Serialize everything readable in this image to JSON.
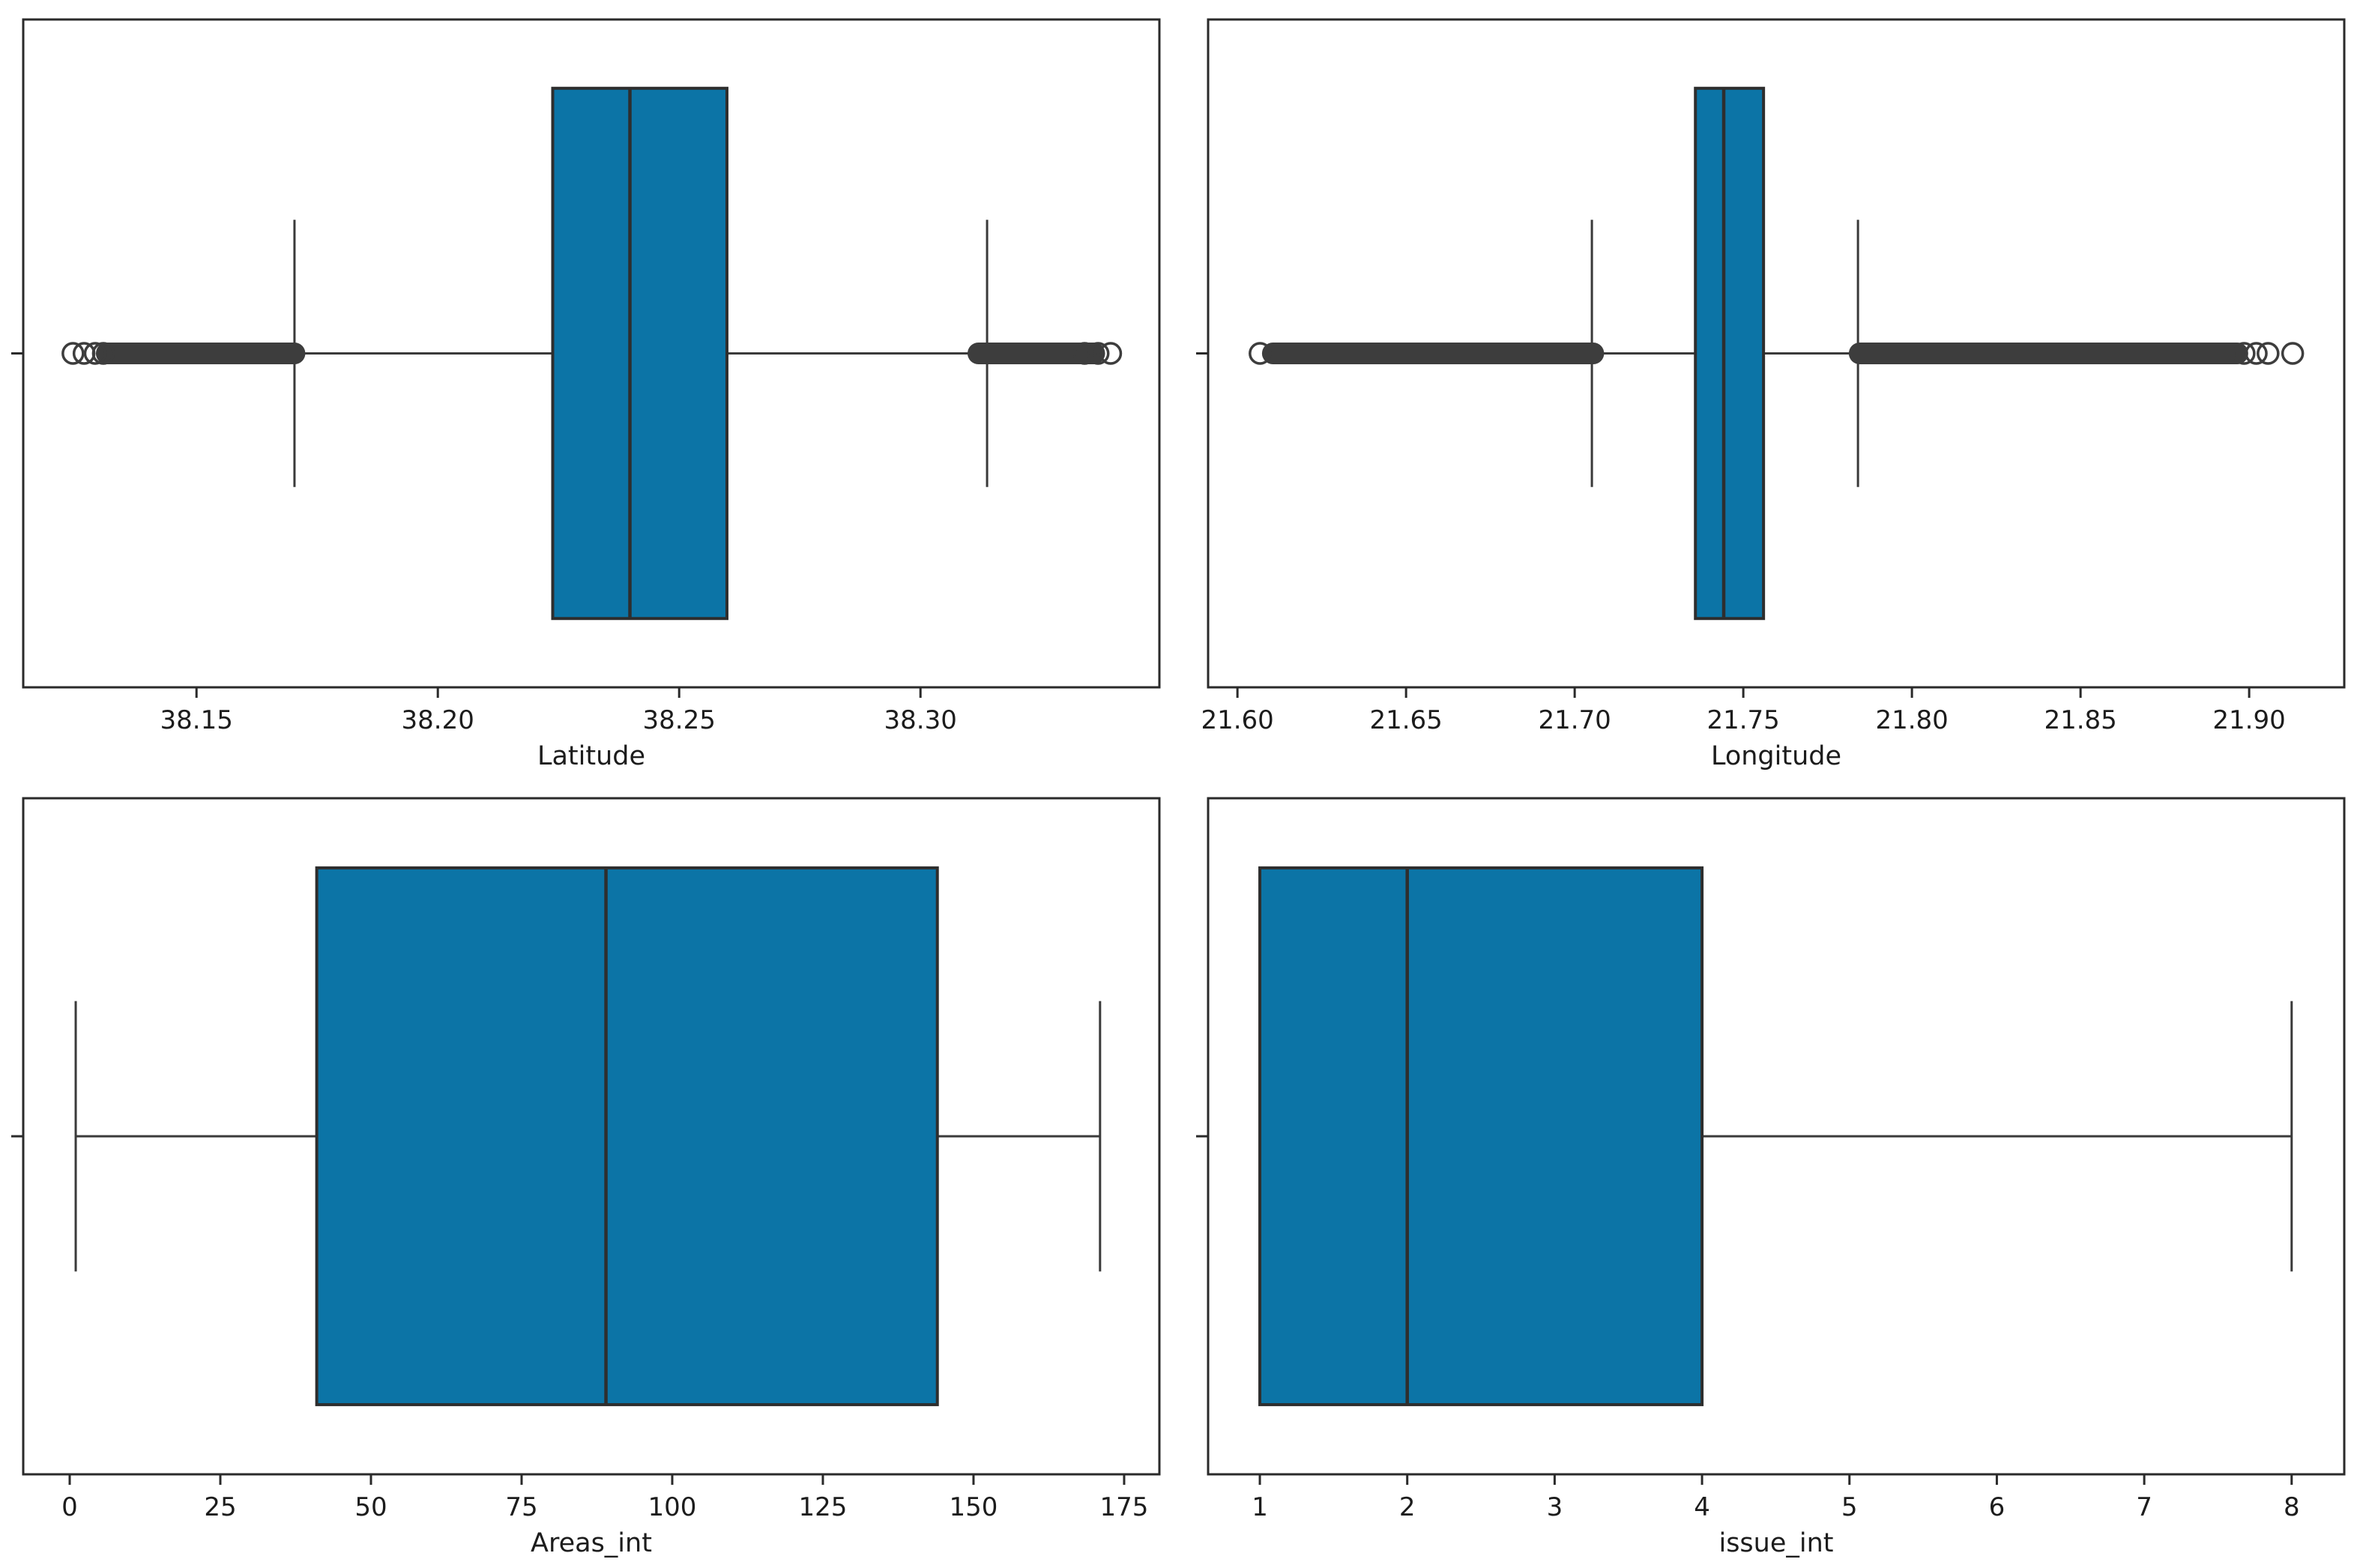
{
  "figure": {
    "background": "#ffffff",
    "rows": 2,
    "cols": 2
  },
  "colors": {
    "box_fill": "#0c74a6",
    "box_edge": "#2e2e2e",
    "whisker": "#3a3a3a",
    "flier": "#3d3d3d",
    "axis": "#2a2a2a",
    "text": "#1c1c1c",
    "background": "#ffffff"
  },
  "chart_data": [
    {
      "type": "boxplot",
      "orientation": "horizontal",
      "xlabel": "Latitude",
      "xlim": [
        38.1141,
        38.3495
      ],
      "grid": false,
      "ticks": {
        "values": [
          38.15,
          38.2,
          38.25,
          38.3
        ],
        "labels": [
          "38.15",
          "38.20",
          "38.25",
          "38.30"
        ]
      },
      "stats": {
        "whisker_low": 38.1703,
        "q1": 38.2238,
        "median": 38.2398,
        "q3": 38.2599,
        "whisker_high": 38.3138
      },
      "outliers": {
        "dense_bands": [
          [
            38.1314,
            38.1703
          ],
          [
            38.312,
            38.336
          ]
        ],
        "points": [
          38.1244,
          38.1267,
          38.129,
          38.1307,
          38.334,
          38.3368,
          38.3394
        ]
      }
    },
    {
      "type": "boxplot",
      "orientation": "horizontal",
      "xlabel": "Longitude",
      "xlim": [
        21.5913,
        21.9282
      ],
      "grid": false,
      "ticks": {
        "values": [
          21.6,
          21.65,
          21.7,
          21.75,
          21.8,
          21.85,
          21.9
        ],
        "labels": [
          "21.60",
          "21.65",
          "21.70",
          "21.75",
          "21.80",
          "21.85",
          "21.90"
        ]
      },
      "stats": {
        "whisker_low": 21.7051,
        "q1": 21.7358,
        "median": 21.7442,
        "q3": 21.756,
        "whisker_high": 21.784
      },
      "outliers": {
        "dense_bands": [
          [
            21.6105,
            21.7055
          ],
          [
            21.7845,
            21.8965
          ]
        ],
        "points": [
          21.6067,
          21.8985,
          21.9021,
          21.9056,
          21.9129
        ]
      }
    },
    {
      "type": "boxplot",
      "orientation": "horizontal",
      "xlabel": "Areas_int",
      "xlim": [
        -7.71,
        180.85
      ],
      "grid": false,
      "ticks": {
        "values": [
          0,
          25,
          50,
          75,
          100,
          125,
          150,
          175
        ],
        "labels": [
          "0",
          "25",
          "50",
          "75",
          "100",
          "125",
          "150",
          "175"
        ]
      },
      "stats": {
        "whisker_low": 1,
        "q1": 41,
        "median": 89,
        "q3": 144,
        "whisker_high": 171
      },
      "outliers": {
        "dense_bands": [],
        "points": []
      }
    },
    {
      "type": "boxplot",
      "orientation": "horizontal",
      "xlabel": "issue_int",
      "xlim": [
        0.649,
        8.357
      ],
      "grid": false,
      "ticks": {
        "values": [
          1,
          2,
          3,
          4,
          5,
          6,
          7,
          8
        ],
        "labels": [
          "1",
          "2",
          "3",
          "4",
          "5",
          "6",
          "7",
          "8"
        ]
      },
      "stats": {
        "whisker_low": 1,
        "q1": 1,
        "median": 2,
        "q3": 4,
        "whisker_high": 8
      },
      "outliers": {
        "dense_bands": [],
        "points": []
      }
    }
  ]
}
